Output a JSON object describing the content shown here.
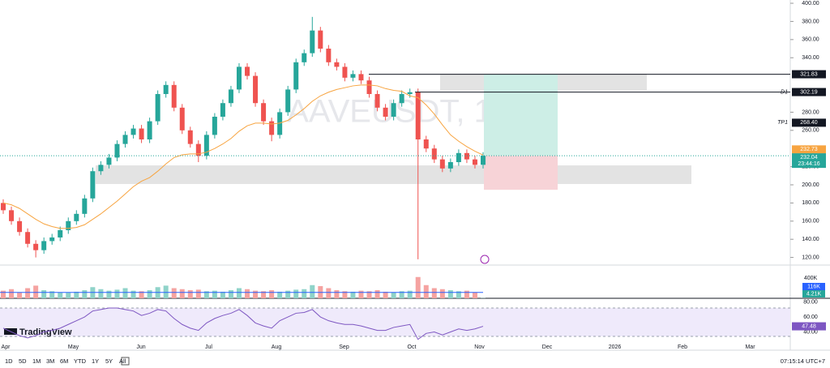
{
  "chart_data": {
    "type": "candlestick",
    "watermark": "AAVEUSDT, 1D",
    "logo": "TradingView",
    "open": [
      180,
      172,
      160,
      148,
      135,
      128,
      138,
      142,
      150,
      160,
      168,
      185,
      215,
      222,
      230,
      245,
      255,
      262,
      250,
      270,
      300,
      310,
      285,
      260,
      245,
      232,
      255,
      275,
      290,
      305,
      330,
      320,
      290,
      270,
      255,
      280,
      305,
      335,
      345,
      370,
      350,
      335,
      330,
      318,
      322,
      315,
      300,
      285,
      275,
      290,
      300,
      302,
      250,
      240,
      228,
      218,
      225,
      235,
      228,
      222
    ],
    "high": [
      184,
      176,
      164,
      152,
      139,
      142,
      146,
      154,
      164,
      172,
      189,
      219,
      226,
      234,
      249,
      259,
      266,
      266,
      274,
      304,
      314,
      314,
      289,
      264,
      249,
      259,
      279,
      294,
      309,
      334,
      334,
      324,
      294,
      274,
      284,
      309,
      339,
      349,
      385,
      374,
      354,
      339,
      334,
      326,
      326,
      319,
      304,
      289,
      294,
      304,
      306,
      306,
      254,
      244,
      232,
      229,
      239,
      239,
      232,
      236
    ],
    "low": [
      168,
      156,
      144,
      131,
      120,
      124,
      134,
      138,
      146,
      156,
      164,
      181,
      211,
      218,
      226,
      241,
      251,
      246,
      246,
      266,
      296,
      281,
      256,
      241,
      225,
      228,
      251,
      271,
      286,
      301,
      316,
      286,
      266,
      248,
      251,
      276,
      301,
      331,
      341,
      346,
      331,
      326,
      314,
      314,
      311,
      296,
      281,
      271,
      271,
      286,
      296,
      118,
      236,
      224,
      214,
      214,
      221,
      224,
      218,
      218
    ],
    "close": [
      172,
      160,
      148,
      135,
      128,
      138,
      142,
      150,
      160,
      168,
      185,
      215,
      222,
      230,
      245,
      255,
      262,
      250,
      270,
      300,
      310,
      285,
      260,
      245,
      232,
      255,
      275,
      290,
      305,
      330,
      320,
      290,
      270,
      255,
      280,
      305,
      335,
      345,
      370,
      350,
      335,
      330,
      318,
      322,
      315,
      300,
      285,
      275,
      290,
      300,
      302,
      250,
      240,
      228,
      218,
      225,
      235,
      228,
      222,
      232.04
    ],
    "ema": [
      180,
      178,
      174,
      168,
      162,
      157,
      154,
      152,
      152,
      153,
      156,
      162,
      168,
      175,
      182,
      190,
      198,
      204,
      208,
      215,
      223,
      230,
      233,
      234,
      234,
      236,
      240,
      245,
      251,
      259,
      265,
      268,
      268,
      267,
      268,
      271,
      277,
      284,
      292,
      298,
      302,
      305,
      307,
      309,
      310,
      310,
      309,
      306,
      304,
      303,
      298,
      296,
      288,
      278,
      266,
      255,
      248,
      242,
      237,
      232.73
    ],
    "ylim": [
      111.6,
      403.6
    ],
    "yticks": [
      {
        "value": 400,
        "label": "400.00"
      },
      {
        "value": 380,
        "label": "380.00"
      },
      {
        "value": 360,
        "label": "360.00"
      },
      {
        "value": 340,
        "label": "340.00"
      },
      {
        "value": 280,
        "label": "280.00"
      },
      {
        "value": 260,
        "label": "260.00"
      },
      {
        "value": 220,
        "label": "220.00"
      },
      {
        "value": 200,
        "label": "200.00"
      },
      {
        "value": 180,
        "label": "180.00"
      },
      {
        "value": 160,
        "label": "160.00"
      },
      {
        "value": 140,
        "label": "140.00"
      },
      {
        "value": 120,
        "label": "120.00"
      }
    ],
    "levels": [
      {
        "value": 321.83
      },
      {
        "value": 302.19,
        "name": "D1"
      },
      {
        "value": 268.4,
        "label": "268.40",
        "name": "TP1"
      }
    ],
    "countdown": "23:44:16",
    "volume": {
      "values": [
        150,
        180,
        120,
        200,
        250,
        160,
        140,
        120,
        110,
        130,
        160,
        220,
        180,
        150,
        170,
        200,
        150,
        140,
        160,
        220,
        250,
        200,
        180,
        160,
        170,
        140,
        150,
        130,
        160,
        200,
        180,
        150,
        140,
        160,
        130,
        150,
        170,
        180,
        260,
        240,
        200,
        160,
        140,
        130,
        150,
        140,
        160,
        130,
        120,
        140,
        150,
        420,
        260,
        200,
        180,
        160,
        140,
        150,
        120,
        4.21
      ],
      "value_labels_last": "4.21K",
      "ylim": [
        0,
        480
      ],
      "yticks": [
        {
          "value": 400,
          "label": "400K"
        }
      ],
      "ma": {
        "value": 116,
        "label": "116K"
      }
    },
    "rsi": {
      "values": [
        45,
        40,
        35,
        32,
        35,
        40,
        42,
        45,
        50,
        55,
        60,
        68,
        70,
        72,
        72,
        70,
        68,
        62,
        65,
        70,
        68,
        58,
        50,
        45,
        42,
        52,
        58,
        62,
        65,
        70,
        62,
        52,
        48,
        45,
        55,
        60,
        65,
        66,
        70,
        60,
        55,
        52,
        50,
        50,
        48,
        45,
        42,
        42,
        46,
        48,
        50,
        30,
        38,
        40,
        36,
        40,
        44,
        42,
        44,
        47.48
      ],
      "ylim": [
        34,
        85
      ],
      "yticks": [
        {
          "value": 80,
          "label": "80.00"
        },
        {
          "value": 60,
          "label": "60.00"
        },
        {
          "value": 40,
          "label": "40.00"
        }
      ]
    },
    "x_labels": [
      "Apr",
      "May",
      "Jun",
      "Jul",
      "Aug",
      "Sep",
      "Oct",
      "Nov",
      "Dec",
      "2026",
      "Feb",
      "Mar"
    ],
    "ranges": [
      "1D",
      "5D",
      "1M",
      "3M",
      "6M",
      "YTD",
      "1Y",
      "5Y",
      "All"
    ],
    "clock": "07:15:14 UTC+7"
  }
}
